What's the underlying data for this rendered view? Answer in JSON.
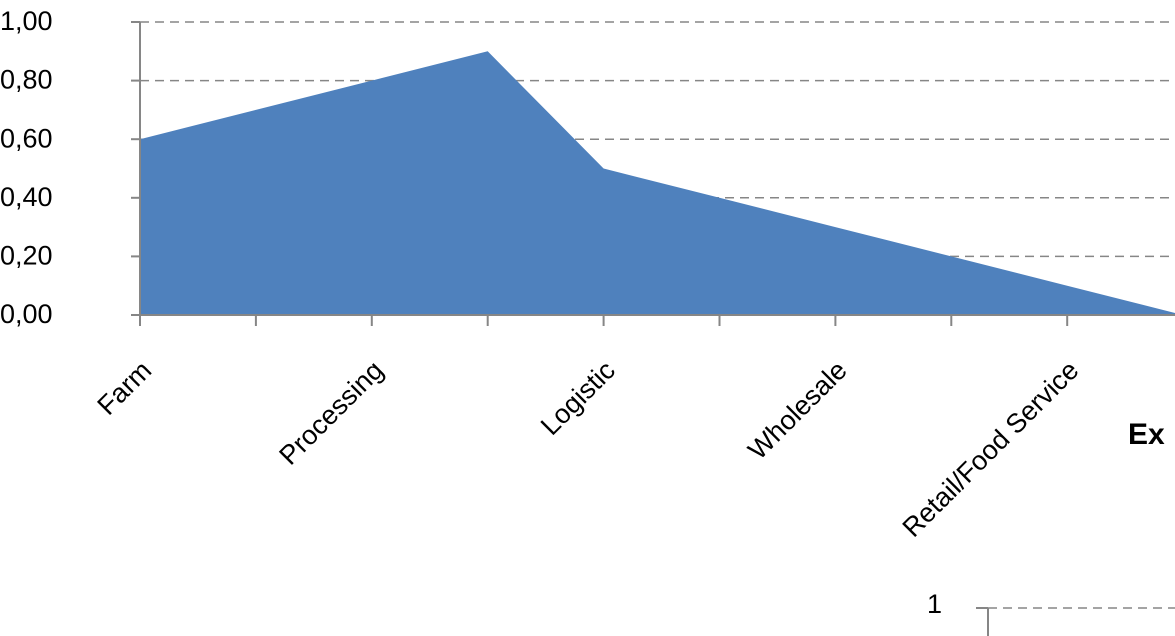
{
  "chart_data": [
    {
      "type": "area",
      "categories": [
        "Farm",
        null,
        "Processing",
        null,
        "Logistic",
        null,
        "Wholesale",
        null,
        "Retail/Food Service",
        null
      ],
      "values": [
        0.6,
        0.7,
        0.8,
        0.9,
        0.5,
        0.4,
        0.3,
        0.2,
        0.1,
        0.0
      ],
      "color": "#4f81bd",
      "ylim": [
        0,
        1
      ],
      "yticks": [
        {
          "value": 0,
          "label": "0,00"
        },
        {
          "value": 0.2,
          "label": "0,20"
        },
        {
          "value": 0.4,
          "label": "0,40"
        },
        {
          "value": 0.6,
          "label": "0,60"
        },
        {
          "value": 0.8,
          "label": "0,80"
        },
        {
          "value": 1,
          "label": "1,00"
        }
      ],
      "grid": true
    },
    {
      "type": "line",
      "title": "Ex",
      "yticks": [
        1
      ],
      "grid": true
    }
  ]
}
